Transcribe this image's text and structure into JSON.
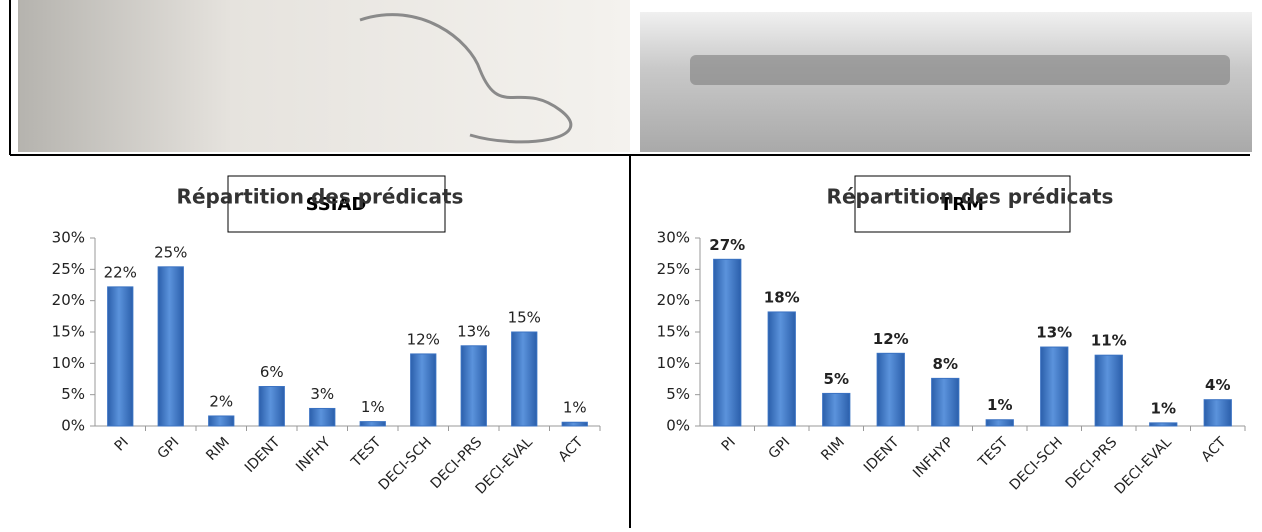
{
  "headers": [
    "SSIAD",
    "TRM"
  ],
  "chart_data": [
    {
      "type": "bar",
      "title": "Répartition des prédicats",
      "categories": [
        "PI",
        "GPI",
        "RIM",
        "IDENT",
        "INFHY",
        "TEST",
        "DECI-SCH",
        "DECI-PRS",
        "DECI-EVAL",
        "ACT"
      ],
      "values": [
        22.2,
        25.4,
        1.6,
        6.3,
        2.8,
        0.7,
        11.5,
        12.8,
        15.0,
        0.6
      ],
      "value_labels": [
        "22%",
        "25%",
        "2%",
        "6%",
        "3%",
        "1%",
        "12%",
        "13%",
        "15%",
        "1%"
      ],
      "color": "#3a72c2",
      "ylim": [
        0,
        30
      ],
      "yticks": [
        {
          "value": 0,
          "label": "0%"
        },
        {
          "value": 5,
          "label": "5%"
        },
        {
          "value": 10,
          "label": "10%"
        },
        {
          "value": 15,
          "label": "15%"
        },
        {
          "value": 20,
          "label": "20%"
        },
        {
          "value": 25,
          "label": "25%"
        },
        {
          "value": 30,
          "label": "30%"
        }
      ]
    },
    {
      "type": "bar",
      "title": "Répartition des prédicats",
      "categories": [
        "PI",
        "GPI",
        "RIM",
        "IDENT",
        "INFHYP",
        "TEST",
        "DECI-SCH",
        "DECI-PRS",
        "DECI-EVAL",
        "ACT"
      ],
      "values": [
        26.6,
        18.2,
        5.2,
        11.6,
        7.6,
        1.0,
        12.6,
        11.3,
        0.5,
        4.2
      ],
      "value_labels": [
        "27%",
        "18%",
        "5%",
        "12%",
        "8%",
        "1%",
        "13%",
        "11%",
        "1%",
        "4%"
      ],
      "color": "#3a72c2",
      "ylim": [
        0,
        30
      ],
      "yticks": [
        {
          "value": 0,
          "label": "0%"
        },
        {
          "value": 5,
          "label": "5%"
        },
        {
          "value": 10,
          "label": "10%"
        },
        {
          "value": 15,
          "label": "15%"
        },
        {
          "value": 20,
          "label": "20%"
        },
        {
          "value": 25,
          "label": "25%"
        },
        {
          "value": 30,
          "label": "30%"
        }
      ]
    }
  ]
}
